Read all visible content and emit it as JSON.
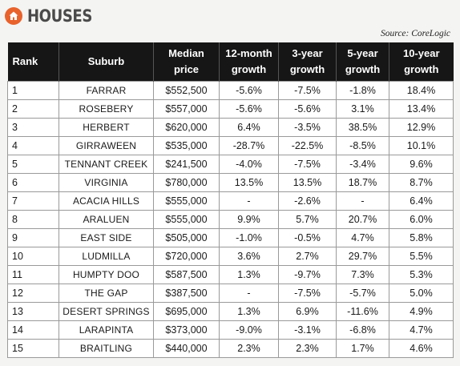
{
  "header": {
    "title": "HOUSES",
    "icon": "home-icon",
    "accent": "#e8622c"
  },
  "source": "Source: CoreLogic",
  "table": {
    "columns": [
      {
        "key": "rank",
        "line1": "Rank",
        "line2": ""
      },
      {
        "key": "suburb",
        "line1": "Suburb",
        "line2": ""
      },
      {
        "key": "median",
        "line1": "Median",
        "line2": "price"
      },
      {
        "key": "g12",
        "line1": "12-month",
        "line2": "growth"
      },
      {
        "key": "g3",
        "line1": "3-year",
        "line2": "growth"
      },
      {
        "key": "g5",
        "line1": "5-year",
        "line2": "growth"
      },
      {
        "key": "g10",
        "line1": "10-year",
        "line2": "growth"
      }
    ],
    "rows": [
      {
        "rank": "1",
        "suburb": "FARRAR",
        "median": "$552,500",
        "g12": "-5.6%",
        "g3": "-7.5%",
        "g5": "-1.8%",
        "g10": "18.4%"
      },
      {
        "rank": "2",
        "suburb": "ROSEBERY",
        "median": "$557,000",
        "g12": "-5.6%",
        "g3": "-5.6%",
        "g5": "3.1%",
        "g10": "13.4%"
      },
      {
        "rank": "3",
        "suburb": "HERBERT",
        "median": "$620,000",
        "g12": "6.4%",
        "g3": "-3.5%",
        "g5": "38.5%",
        "g10": "12.9%"
      },
      {
        "rank": "4",
        "suburb": "GIRRAWEEN",
        "median": "$535,000",
        "g12": "-28.7%",
        "g3": "-22.5%",
        "g5": "-8.5%",
        "g10": "10.1%"
      },
      {
        "rank": "5",
        "suburb": "TENNANT CREEK",
        "median": "$241,500",
        "g12": "-4.0%",
        "g3": "-7.5%",
        "g5": "-3.4%",
        "g10": "9.6%"
      },
      {
        "rank": "6",
        "suburb": "VIRGINIA",
        "median": "$780,000",
        "g12": "13.5%",
        "g3": "13.5%",
        "g5": "18.7%",
        "g10": "8.7%"
      },
      {
        "rank": "7",
        "suburb": "ACACIA HILLS",
        "median": "$555,000",
        "g12": "-",
        "g3": "-2.6%",
        "g5": "-",
        "g10": "6.4%"
      },
      {
        "rank": "8",
        "suburb": "ARALUEN",
        "median": "$555,000",
        "g12": "9.9%",
        "g3": "5.7%",
        "g5": "20.7%",
        "g10": "6.0%"
      },
      {
        "rank": "9",
        "suburb": "EAST SIDE",
        "median": "$505,000",
        "g12": "-1.0%",
        "g3": "-0.5%",
        "g5": "4.7%",
        "g10": "5.8%"
      },
      {
        "rank": "10",
        "suburb": "LUDMILLA",
        "median": "$720,000",
        "g12": "3.6%",
        "g3": "2.7%",
        "g5": "29.7%",
        "g10": "5.5%"
      },
      {
        "rank": "11",
        "suburb": "HUMPTY DOO",
        "median": "$587,500",
        "g12": "1.3%",
        "g3": "-9.7%",
        "g5": "7.3%",
        "g10": "5.3%"
      },
      {
        "rank": "12",
        "suburb": "THE GAP",
        "median": "$387,500",
        "g12": "-",
        "g3": "-7.5%",
        "g5": "-5.7%",
        "g10": "5.0%"
      },
      {
        "rank": "13",
        "suburb": "DESERT SPRINGS",
        "median": "$695,000",
        "g12": "1.3%",
        "g3": "6.9%",
        "g5": "-11.6%",
        "g10": "4.9%"
      },
      {
        "rank": "14",
        "suburb": "LARAPINTA",
        "median": "$373,000",
        "g12": "-9.0%",
        "g3": "-3.1%",
        "g5": "-6.8%",
        "g10": "4.7%"
      },
      {
        "rank": "15",
        "suburb": "BRAITLING",
        "median": "$440,000",
        "g12": "2.3%",
        "g3": "2.3%",
        "g5": "1.7%",
        "g10": "4.6%"
      }
    ]
  }
}
